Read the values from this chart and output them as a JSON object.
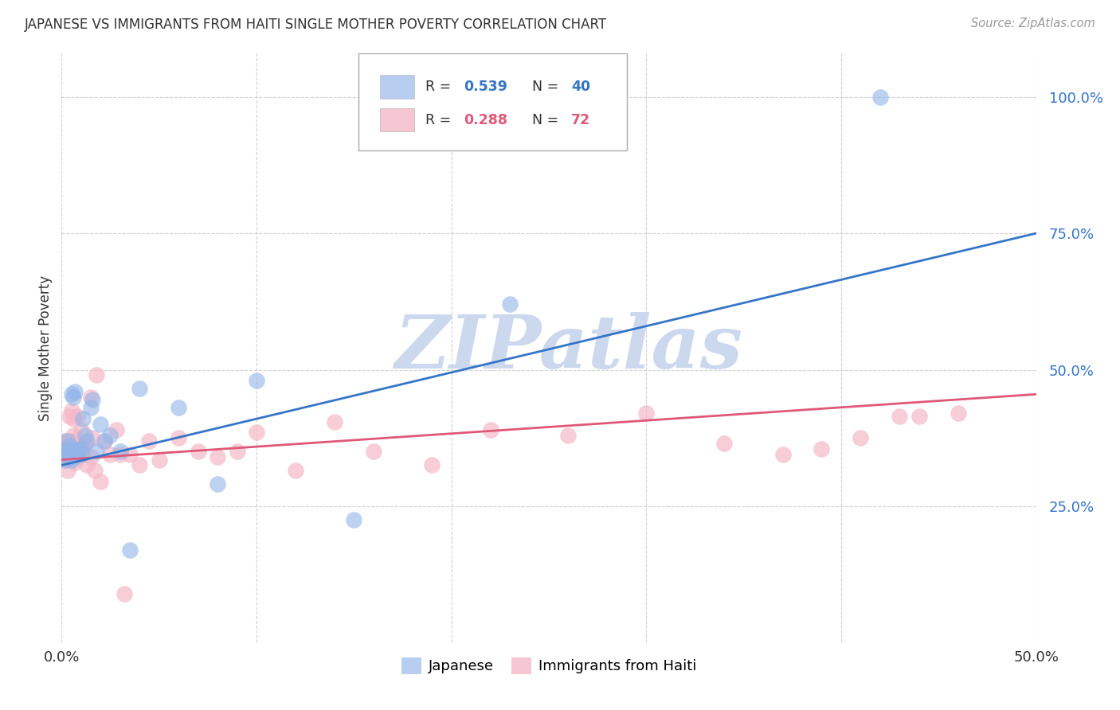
{
  "title": "JAPANESE VS IMMIGRANTS FROM HAITI SINGLE MOTHER POVERTY CORRELATION CHART",
  "source": "Source: ZipAtlas.com",
  "ylabel": "Single Mother Poverty",
  "ytick_vals": [
    0.25,
    0.5,
    0.75,
    1.0
  ],
  "xlim": [
    0.0,
    0.5
  ],
  "ylim": [
    0.0,
    1.08
  ],
  "blue_color": "#92b4e8",
  "pink_color": "#f5b8c8",
  "blue_line_color": "#3575c8",
  "pink_line_color": "#e05878",
  "grid_color": "#cccccc",
  "background_color": "#ffffff",
  "watermark_text": "ZIPatlas",
  "watermark_color": "#ccd8ee",
  "japanese_x": [
    0.001,
    0.002,
    0.002,
    0.003,
    0.003,
    0.003,
    0.004,
    0.004,
    0.004,
    0.005,
    0.005,
    0.005,
    0.006,
    0.006,
    0.007,
    0.007,
    0.007,
    0.008,
    0.008,
    0.009,
    0.01,
    0.01,
    0.011,
    0.012,
    0.013,
    0.015,
    0.016,
    0.018,
    0.02,
    0.022,
    0.025,
    0.03,
    0.035,
    0.04,
    0.06,
    0.08,
    0.1,
    0.15,
    0.23,
    0.42
  ],
  "japanese_y": [
    0.34,
    0.35,
    0.335,
    0.345,
    0.355,
    0.37,
    0.34,
    0.35,
    0.36,
    0.335,
    0.455,
    0.34,
    0.45,
    0.345,
    0.35,
    0.46,
    0.35,
    0.35,
    0.345,
    0.355,
    0.355,
    0.345,
    0.41,
    0.38,
    0.37,
    0.43,
    0.445,
    0.35,
    0.4,
    0.37,
    0.38,
    0.35,
    0.17,
    0.465,
    0.43,
    0.29,
    0.48,
    0.225,
    0.62,
    1.0
  ],
  "haiti_x": [
    0.001,
    0.001,
    0.002,
    0.002,
    0.002,
    0.003,
    0.003,
    0.003,
    0.003,
    0.003,
    0.004,
    0.004,
    0.004,
    0.004,
    0.004,
    0.005,
    0.005,
    0.005,
    0.005,
    0.006,
    0.006,
    0.006,
    0.006,
    0.007,
    0.007,
    0.007,
    0.008,
    0.008,
    0.008,
    0.009,
    0.009,
    0.01,
    0.01,
    0.01,
    0.011,
    0.011,
    0.012,
    0.013,
    0.015,
    0.015,
    0.016,
    0.017,
    0.018,
    0.02,
    0.022,
    0.025,
    0.028,
    0.03,
    0.032,
    0.035,
    0.04,
    0.045,
    0.05,
    0.06,
    0.07,
    0.08,
    0.09,
    0.1,
    0.12,
    0.14,
    0.16,
    0.19,
    0.22,
    0.26,
    0.3,
    0.34,
    0.37,
    0.39,
    0.41,
    0.43,
    0.44,
    0.46
  ],
  "haiti_y": [
    0.37,
    0.345,
    0.37,
    0.335,
    0.345,
    0.355,
    0.345,
    0.37,
    0.315,
    0.36,
    0.34,
    0.345,
    0.415,
    0.355,
    0.345,
    0.35,
    0.37,
    0.34,
    0.425,
    0.36,
    0.38,
    0.36,
    0.41,
    0.33,
    0.37,
    0.35,
    0.345,
    0.415,
    0.355,
    0.365,
    0.34,
    0.345,
    0.39,
    0.36,
    0.355,
    0.345,
    0.365,
    0.325,
    0.45,
    0.34,
    0.375,
    0.315,
    0.49,
    0.295,
    0.37,
    0.345,
    0.39,
    0.345,
    0.09,
    0.345,
    0.325,
    0.37,
    0.335,
    0.375,
    0.35,
    0.34,
    0.35,
    0.385,
    0.315,
    0.405,
    0.35,
    0.325,
    0.39,
    0.38,
    0.42,
    0.365,
    0.345,
    0.355,
    0.375,
    0.415,
    0.415,
    0.42
  ]
}
